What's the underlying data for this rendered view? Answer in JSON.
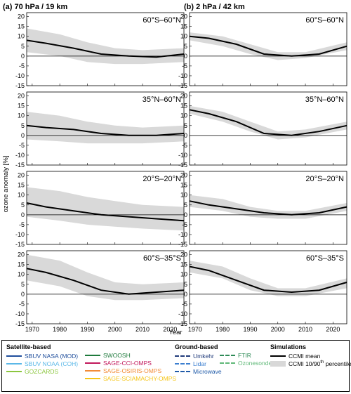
{
  "chart_data": {
    "type": "line",
    "ylabel": "ozone anomaly [%]",
    "xlabel": "Year",
    "xlim": [
      1968,
      2025
    ],
    "ylim": [
      -15,
      22
    ],
    "xticks": [
      1970,
      1980,
      1990,
      2000,
      2010,
      2020
    ],
    "yticks": [
      20,
      15,
      10,
      5,
      0,
      -5,
      -10,
      -15
    ],
    "columns": [
      {
        "title": "(a) 70 hPa / 19 km"
      },
      {
        "title": "(b) 2 hPa / 42 km"
      }
    ],
    "rows": [
      "60°S–60°N",
      "35°N–60°N",
      "20°S–20°N",
      "60°S–35°S"
    ],
    "series_colors": {
      "SBUV NASA (MOD)": "#1f4e9c",
      "SBUV NOAA (COH)": "#5bb8e8",
      "GOZCARDS": "#8cc63f",
      "SWOOSH": "#1e7a3c",
      "SAGE-CCI-OMPS": "#c2185b",
      "SAGE-OSIRIS-OMPS": "#f28c38",
      "SAGE-SCIAMACHY-OMPS": "#f5c518",
      "Umkehr": "#1f3a7a",
      "Lidar": "#3c7fd0",
      "Microwave": "#1f5aa8",
      "FTIR": "#2e8b57",
      "Ozonesonde": "#5fb878",
      "CCMI mean": "#000000",
      "CCMI band": "#d9d9d9"
    },
    "panels": [
      {
        "col": 0,
        "row": 0,
        "ccmi": [
          [
            1968,
            8
          ],
          [
            1975,
            6.5
          ],
          [
            1985,
            4
          ],
          [
            1995,
            1
          ],
          [
            2005,
            0
          ],
          [
            2015,
            -0.5
          ],
          [
            2025,
            1
          ]
        ],
        "band": [
          [
            1968,
            14,
            2
          ],
          [
            1980,
            11,
            0
          ],
          [
            1990,
            7,
            -3
          ],
          [
            2000,
            4,
            -4
          ],
          [
            2010,
            3,
            -4
          ],
          [
            2025,
            4,
            -3
          ]
        ]
      },
      {
        "col": 0,
        "row": 1,
        "ccmi": [
          [
            1968,
            5
          ],
          [
            1975,
            4
          ],
          [
            1985,
            3
          ],
          [
            1995,
            1
          ],
          [
            2005,
            0
          ],
          [
            2015,
            0
          ],
          [
            2025,
            1
          ]
        ],
        "band": [
          [
            1968,
            12,
            -2
          ],
          [
            1980,
            10,
            -3
          ],
          [
            1990,
            7,
            -4
          ],
          [
            2000,
            5,
            -4
          ],
          [
            2010,
            4,
            -4
          ],
          [
            2025,
            5,
            -3
          ]
        ]
      },
      {
        "col": 0,
        "row": 2,
        "ccmi": [
          [
            1968,
            6
          ],
          [
            1975,
            4
          ],
          [
            1985,
            2
          ],
          [
            1995,
            0
          ],
          [
            2005,
            -1
          ],
          [
            2015,
            -2
          ],
          [
            2025,
            -3
          ]
        ],
        "band": [
          [
            1968,
            14,
            -1
          ],
          [
            1980,
            12,
            -3
          ],
          [
            1990,
            9,
            -5
          ],
          [
            2000,
            7,
            -6
          ],
          [
            2010,
            5,
            -7
          ],
          [
            2025,
            4,
            -8
          ]
        ]
      },
      {
        "col": 0,
        "row": 3,
        "ccmi": [
          [
            1968,
            13
          ],
          [
            1975,
            11
          ],
          [
            1985,
            7
          ],
          [
            1995,
            2
          ],
          [
            2005,
            0
          ],
          [
            2015,
            1
          ],
          [
            2025,
            2
          ]
        ],
        "band": [
          [
            1968,
            20,
            7
          ],
          [
            1980,
            17,
            4
          ],
          [
            1990,
            11,
            -1
          ],
          [
            2000,
            6,
            -3
          ],
          [
            2010,
            5,
            -3
          ],
          [
            2025,
            6,
            -2
          ]
        ]
      },
      {
        "col": 1,
        "row": 0,
        "ccmi": [
          [
            1968,
            10
          ],
          [
            1975,
            9
          ],
          [
            1985,
            6
          ],
          [
            1995,
            1
          ],
          [
            2005,
            0
          ],
          [
            2015,
            1
          ],
          [
            2025,
            5
          ]
        ],
        "band": [
          [
            1968,
            12,
            8
          ],
          [
            1980,
            10,
            5
          ],
          [
            1990,
            6,
            1
          ],
          [
            2000,
            2,
            -2
          ],
          [
            2010,
            2,
            -1
          ],
          [
            2025,
            7,
            3
          ]
        ]
      },
      {
        "col": 1,
        "row": 1,
        "ccmi": [
          [
            1968,
            13
          ],
          [
            1975,
            11
          ],
          [
            1985,
            7
          ],
          [
            1995,
            1
          ],
          [
            2005,
            0
          ],
          [
            2015,
            2
          ],
          [
            2025,
            5
          ]
        ],
        "band": [
          [
            1968,
            15,
            11
          ],
          [
            1980,
            12,
            7
          ],
          [
            1990,
            7,
            2
          ],
          [
            2000,
            2,
            -2
          ],
          [
            2010,
            3,
            -1
          ],
          [
            2025,
            7,
            3
          ]
        ]
      },
      {
        "col": 1,
        "row": 2,
        "ccmi": [
          [
            1968,
            7
          ],
          [
            1975,
            5
          ],
          [
            1985,
            3
          ],
          [
            1995,
            1
          ],
          [
            2005,
            0
          ],
          [
            2015,
            1
          ],
          [
            2025,
            4
          ]
        ],
        "band": [
          [
            1968,
            10,
            4
          ],
          [
            1980,
            8,
            2
          ],
          [
            1990,
            4,
            -1
          ],
          [
            2000,
            2,
            -2
          ],
          [
            2010,
            2,
            -2
          ],
          [
            2025,
            6,
            2
          ]
        ]
      },
      {
        "col": 1,
        "row": 3,
        "ccmi": [
          [
            1968,
            14
          ],
          [
            1975,
            12
          ],
          [
            1985,
            7
          ],
          [
            1995,
            2
          ],
          [
            2005,
            1
          ],
          [
            2015,
            2
          ],
          [
            2025,
            6
          ]
        ],
        "band": [
          [
            1968,
            17,
            11
          ],
          [
            1980,
            14,
            8
          ],
          [
            1990,
            8,
            2
          ],
          [
            2000,
            3,
            -1
          ],
          [
            2010,
            3,
            -1
          ],
          [
            2025,
            8,
            3
          ]
        ]
      }
    ]
  },
  "legend": {
    "satellite_title": "Satellite-based",
    "ground_title": "Ground-based",
    "sim_title": "Simulations",
    "satellite_items_col1": [
      {
        "label": "SBUV NASA (MOD)",
        "color": "#1f4e9c"
      },
      {
        "label": "SBUV NOAA (COH)",
        "color": "#5bb8e8"
      },
      {
        "label": "GOZCARDS",
        "color": "#8cc63f"
      }
    ],
    "satellite_items_col2": [
      {
        "label": "SWOOSH",
        "color": "#1e7a3c"
      },
      {
        "label": "SAGE-CCI-OMPS",
        "color": "#c2185b"
      },
      {
        "label": "SAGE-OSIRIS-OMPS",
        "color": "#f28c38"
      },
      {
        "label": "SAGE-SCIAMACHY-OMPS",
        "color": "#f5c518"
      }
    ],
    "ground_items_col1": [
      {
        "label": "Umkehr",
        "color": "#1f3a7a"
      },
      {
        "label": "Lidar",
        "color": "#3c7fd0"
      },
      {
        "label": "Microwave",
        "color": "#1f5aa8"
      }
    ],
    "ground_items_col2": [
      {
        "label": "FTIR",
        "color": "#2e8b57"
      },
      {
        "label": "Ozonesonde",
        "color": "#5fb878"
      }
    ],
    "sim_mean_label": "CCMI mean",
    "sim_band_label": "CCMI 10/90",
    "sim_band_sup": "th",
    "sim_band_suffix": " percentile"
  }
}
